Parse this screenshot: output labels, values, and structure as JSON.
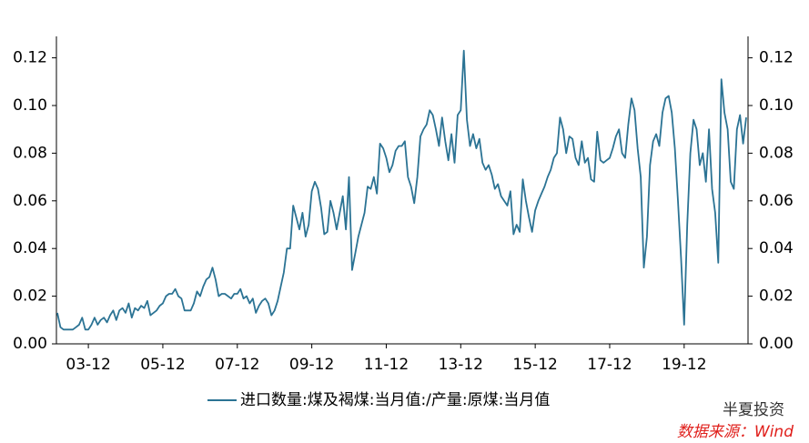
{
  "chart_data": {
    "type": "line",
    "categories": [
      null,
      null,
      null,
      null,
      null,
      null,
      null,
      null,
      null,
      null,
      "03-12",
      null,
      null,
      null,
      null,
      null,
      null,
      null,
      null,
      null,
      null,
      null,
      null,
      null,
      null,
      null,
      null,
      null,
      null,
      null,
      null,
      null,
      null,
      null,
      "05-12",
      null,
      null,
      null,
      null,
      null,
      null,
      null,
      null,
      null,
      null,
      null,
      null,
      null,
      null,
      null,
      null,
      null,
      null,
      null,
      null,
      null,
      null,
      null,
      "07-12",
      null,
      null,
      null,
      null,
      null,
      null,
      null,
      null,
      null,
      null,
      null,
      null,
      null,
      null,
      null,
      null,
      null,
      null,
      null,
      null,
      null,
      null,
      null,
      "09-12",
      null,
      null,
      null,
      null,
      null,
      null,
      null,
      null,
      null,
      null,
      null,
      null,
      null,
      null,
      null,
      null,
      null,
      null,
      null,
      null,
      null,
      null,
      null,
      "11-12",
      null,
      null,
      null,
      null,
      null,
      null,
      null,
      null,
      null,
      null,
      null,
      null,
      null,
      null,
      null,
      null,
      null,
      null,
      null,
      null,
      null,
      null,
      null,
      "13-12",
      null,
      null,
      null,
      null,
      null,
      null,
      null,
      null,
      null,
      null,
      null,
      null,
      null,
      null,
      null,
      null,
      null,
      null,
      null,
      null,
      null,
      null,
      null,
      "15-12",
      null,
      null,
      null,
      null,
      null,
      null,
      null,
      null,
      null,
      null,
      null,
      null,
      null,
      null,
      null,
      null,
      null,
      null,
      null,
      null,
      null,
      null,
      null,
      "17-12",
      null,
      null,
      null,
      null,
      null,
      null,
      null,
      null,
      null,
      null,
      null,
      null,
      null,
      null,
      null,
      null,
      null,
      null,
      null,
      null,
      null,
      null,
      null,
      "19-12",
      null,
      null,
      null,
      null,
      null,
      null,
      null,
      null,
      null,
      null,
      null,
      null,
      null,
      null,
      null,
      null,
      null,
      null,
      null,
      null
    ],
    "series": [
      {
        "name": "进口数量:煤及褐煤:当月值:/产量:原煤:当月值",
        "color": "#2b7394",
        "values": [
          0.013,
          0.007,
          0.006,
          0.006,
          0.006,
          0.006,
          0.007,
          0.008,
          0.011,
          0.006,
          0.006,
          0.008,
          0.011,
          0.008,
          0.01,
          0.011,
          0.009,
          0.012,
          0.014,
          0.01,
          0.014,
          0.015,
          0.013,
          0.017,
          0.011,
          0.015,
          0.014,
          0.016,
          0.015,
          0.018,
          0.012,
          0.013,
          0.014,
          0.016,
          0.017,
          0.02,
          0.021,
          0.021,
          0.023,
          0.02,
          0.019,
          0.014,
          0.014,
          0.014,
          0.017,
          0.022,
          0.02,
          0.024,
          0.027,
          0.028,
          0.032,
          0.027,
          0.02,
          0.021,
          0.021,
          0.02,
          0.019,
          0.021,
          0.021,
          0.023,
          0.019,
          0.02,
          0.017,
          0.019,
          0.013,
          0.016,
          0.018,
          0.019,
          0.017,
          0.012,
          0.014,
          0.018,
          0.024,
          0.03,
          0.04,
          0.04,
          0.058,
          0.053,
          0.048,
          0.055,
          0.045,
          0.05,
          0.064,
          0.068,
          0.065,
          0.057,
          0.046,
          0.047,
          0.06,
          0.055,
          0.048,
          0.055,
          0.062,
          0.048,
          0.07,
          0.031,
          0.038,
          0.045,
          0.05,
          0.055,
          0.066,
          0.065,
          0.07,
          0.063,
          0.084,
          0.082,
          0.078,
          0.072,
          0.075,
          0.081,
          0.083,
          0.083,
          0.085,
          0.07,
          0.066,
          0.059,
          0.07,
          0.087,
          0.09,
          0.092,
          0.098,
          0.096,
          0.09,
          0.083,
          0.095,
          0.085,
          0.077,
          0.088,
          0.076,
          0.096,
          0.098,
          0.123,
          0.094,
          0.083,
          0.088,
          0.082,
          0.086,
          0.076,
          0.073,
          0.075,
          0.071,
          0.065,
          0.067,
          0.062,
          0.06,
          0.058,
          0.064,
          0.046,
          0.05,
          0.047,
          0.069,
          0.06,
          0.053,
          0.047,
          0.056,
          0.06,
          0.063,
          0.066,
          0.07,
          0.073,
          0.078,
          0.08,
          0.095,
          0.09,
          0.08,
          0.087,
          0.086,
          0.078,
          0.075,
          0.085,
          0.076,
          0.078,
          0.069,
          0.068,
          0.089,
          0.077,
          0.076,
          0.077,
          0.078,
          0.082,
          0.087,
          0.09,
          0.08,
          0.078,
          0.092,
          0.103,
          0.098,
          0.082,
          0.07,
          0.032,
          0.045,
          0.075,
          0.085,
          0.088,
          0.083,
          0.097,
          0.103,
          0.104,
          0.097,
          0.082,
          0.06,
          0.036,
          0.008,
          0.05,
          0.08,
          0.094,
          0.09,
          0.075,
          0.08,
          0.068,
          0.09,
          0.065,
          0.055,
          0.034,
          0.111,
          0.097,
          0.09,
          0.068,
          0.065,
          0.09,
          0.096,
          0.084,
          0.095
        ]
      }
    ],
    "ylim": [
      0,
      0.129
    ],
    "yticks": [
      {
        "value": 0,
        "label": "0.00"
      },
      {
        "value": 0.02,
        "label": "0.02"
      },
      {
        "value": 0.04,
        "label": "0.04"
      },
      {
        "value": 0.06,
        "label": "0.06"
      },
      {
        "value": 0.08,
        "label": "0.08"
      },
      {
        "value": 0.1,
        "label": "0.10"
      },
      {
        "value": 0.12,
        "label": "0.12"
      }
    ],
    "y2lim": [
      0,
      0.129
    ],
    "y2ticks": [
      {
        "value": 0,
        "label": "0.00"
      },
      {
        "value": 0.02,
        "label": "0.02"
      },
      {
        "value": 0.04,
        "label": "0.04"
      },
      {
        "value": 0.06,
        "label": "0.06"
      },
      {
        "value": 0.08,
        "label": "0.08"
      },
      {
        "value": 0.1,
        "label": "0.10"
      },
      {
        "value": 0.12,
        "label": "0.12"
      }
    ],
    "legend": "bottom",
    "watermark": "半夏投资",
    "source": "数据来源：Wind"
  }
}
